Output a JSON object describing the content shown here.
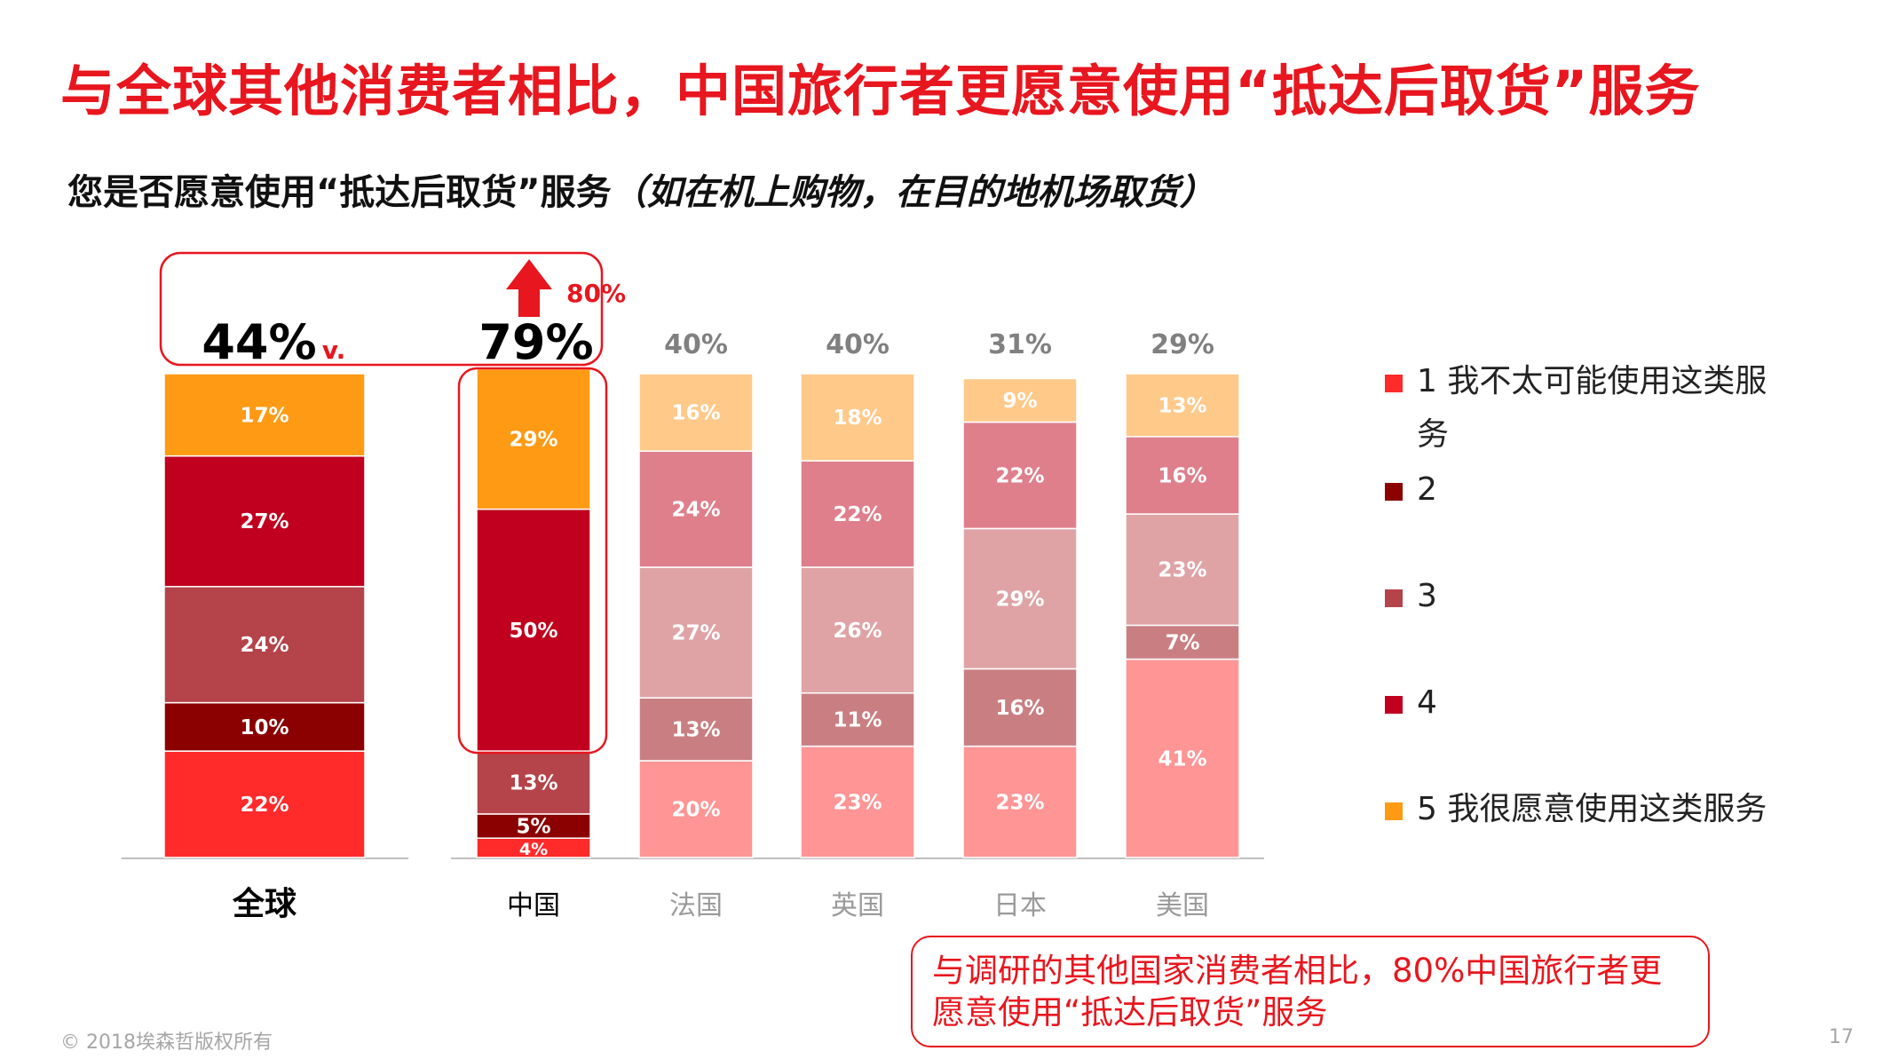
{
  "title": "与全球其他消费者相比，中国旅行者更愿意使用“抵达后取货”服务",
  "subtitle_main": "您是否愿意使用“抵达后取货”服务",
  "subtitle_italic": "（如在机上购物，在目的地机场取货）",
  "legend": [
    {
      "label": "1  我不太可能使用这类服务",
      "color": "#ff2a2a"
    },
    {
      "label": "2",
      "color": "#8b0000"
    },
    {
      "label": "3",
      "color": "#b5434a"
    },
    {
      "label": "4",
      "color": "#c0001e"
    },
    {
      "label": "5  我很愿意使用这类服务",
      "color": "#ff9a14"
    }
  ],
  "callout": "与调研的其他国家消费者相比，80%中国旅行者更愿意使用“抵达后取货”服务",
  "footer": "© 2018埃森哲版权所有",
  "page_number": "17",
  "chart_data": {
    "type": "bar",
    "stacked": true,
    "categories": [
      "全球",
      "中国",
      "法国",
      "英国",
      "日本",
      "美国"
    ],
    "top_labels": [
      "44%",
      "79%",
      "40%",
      "40%",
      "31%",
      "29%"
    ],
    "global_suffix": "v.",
    "increase_label": "80%",
    "series": [
      {
        "name": "1",
        "values": [
          22,
          4,
          20,
          23,
          23,
          41
        ]
      },
      {
        "name": "2",
        "values": [
          10,
          5,
          13,
          11,
          16,
          7
        ]
      },
      {
        "name": "3",
        "values": [
          24,
          13,
          27,
          26,
          29,
          23
        ]
      },
      {
        "name": "4",
        "values": [
          27,
          50,
          24,
          22,
          22,
          16
        ]
      },
      {
        "name": "5",
        "values": [
          17,
          29,
          16,
          18,
          9,
          13
        ]
      }
    ],
    "palettes": {
      "global": [
        "#ff2a2a",
        "#8b0000",
        "#b5434a",
        "#c0001e",
        "#ff9a14"
      ],
      "china": [
        "#ff2a2a",
        "#8b0000",
        "#b5434a",
        "#c0001e",
        "#ff9a14"
      ],
      "others": [
        "#ff9595",
        "#c97f82",
        "#dfa3a6",
        "#df7f8c",
        "#ffc98a"
      ]
    },
    "colors": {
      "accent": "#e8161e",
      "top_label_other": "#808080"
    }
  }
}
